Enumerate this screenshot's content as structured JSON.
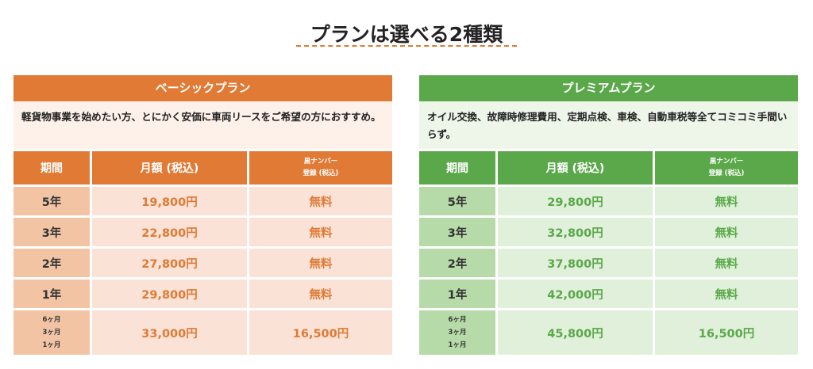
{
  "title": "プランは選べる2種類",
  "plans": [
    {
      "name": "ベーシックプラン",
      "description": "軽貨物事業を始めたい方、とにかく安価に車両リースをご希望の方におすすめ。",
      "header": [
        "期間",
        "月額 (税込)",
        "黒ナンバー\n登録 (税込)"
      ],
      "rows": [
        [
          "5年",
          "19,800円",
          "無料"
        ],
        [
          "3年",
          "22,800円",
          "無料"
        ],
        [
          "2年",
          "27,800円",
          "無料"
        ],
        [
          "1年",
          "29,800円",
          "無料"
        ],
        [
          "6ヶ月\n3ヶ月\n1ヶ月",
          "33,000円",
          "16,500円"
        ]
      ]
    },
    {
      "name": "プレミアムプラン",
      "description": "オイル交換、故障時修理費用、定期点検、車検、自動車税等全てコミコミ手間いらず。",
      "header": [
        "期間",
        "月額 (税込)",
        "黒ナンバー\n登録 (税込)"
      ],
      "rows": [
        [
          "5年",
          "29,800円",
          "無料"
        ],
        [
          "3年",
          "32,800円",
          "無料"
        ],
        [
          "2年",
          "37,800円",
          "無料"
        ],
        [
          "1年",
          "42,000円",
          "無料"
        ],
        [
          "6ヶ月\n3ヶ月\n1ヶ月",
          "45,800円",
          "16,500円"
        ]
      ]
    }
  ]
}
